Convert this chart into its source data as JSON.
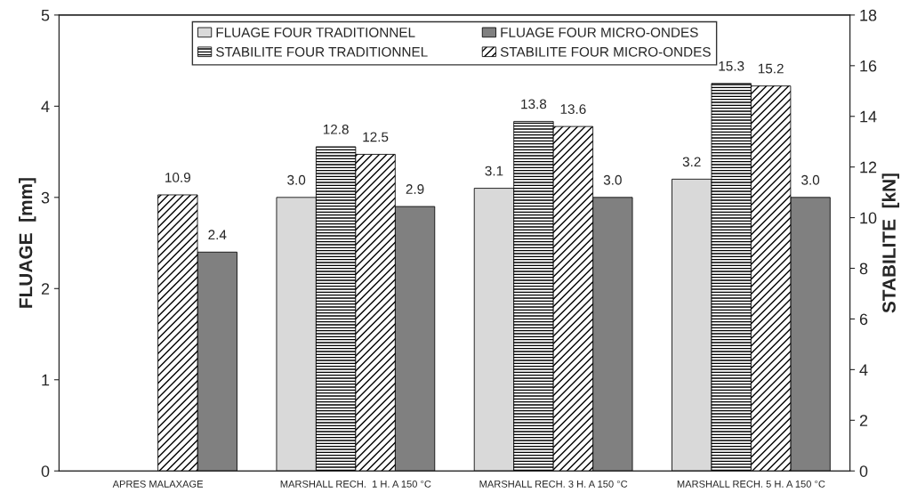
{
  "chart_data": {
    "type": "bar",
    "categories": [
      "APRES MALAXAGE",
      "MARSHALL RECH.  1 H. A 150 °C",
      "MARSHALL RECH. 3 H. A 150 °C",
      "MARSHALL RECH. 5 H. A 150 °C"
    ],
    "ylabel": "FLUAGE  [mm]",
    "y2label": "STABILITE  [kN]",
    "ylim": [
      0,
      5
    ],
    "yticks": [
      0,
      1,
      2,
      3,
      4,
      5
    ],
    "y2lim": [
      0,
      18
    ],
    "y2ticks": [
      0,
      2,
      4,
      6,
      8,
      10,
      12,
      14,
      16,
      18
    ],
    "grid": false,
    "legend": "top",
    "series": [
      {
        "name": "FLUAGE FOUR TRADITIONNEL",
        "color": "#d9d9d9",
        "values": [
          null,
          3.0,
          3.1,
          3.2
        ],
        "value_labels": [
          null,
          "3.0",
          "3.1",
          "3.2"
        ]
      },
      {
        "name": "STABILITE FOUR TRADITIONNEL",
        "color": "#000000",
        "axis": "y2",
        "values": [
          null,
          12.8,
          13.8,
          15.3
        ],
        "value_labels": [
          null,
          "12.8",
          "13.8",
          "15.3"
        ]
      },
      {
        "name": "STABILITE FOUR MICRO-ONDES",
        "color": "#000000",
        "axis": "y2",
        "values": [
          10.9,
          12.5,
          13.6,
          15.2
        ],
        "value_labels": [
          "10.9",
          "12.5",
          "13.6",
          "15.2"
        ]
      },
      {
        "name": "FLUAGE FOUR MICRO-ONDES",
        "color": "#808080",
        "values": [
          2.4,
          2.9,
          3.0,
          3.0
        ],
        "value_labels": [
          "2.4",
          "2.9",
          "3.0",
          "3.0"
        ]
      }
    ]
  }
}
